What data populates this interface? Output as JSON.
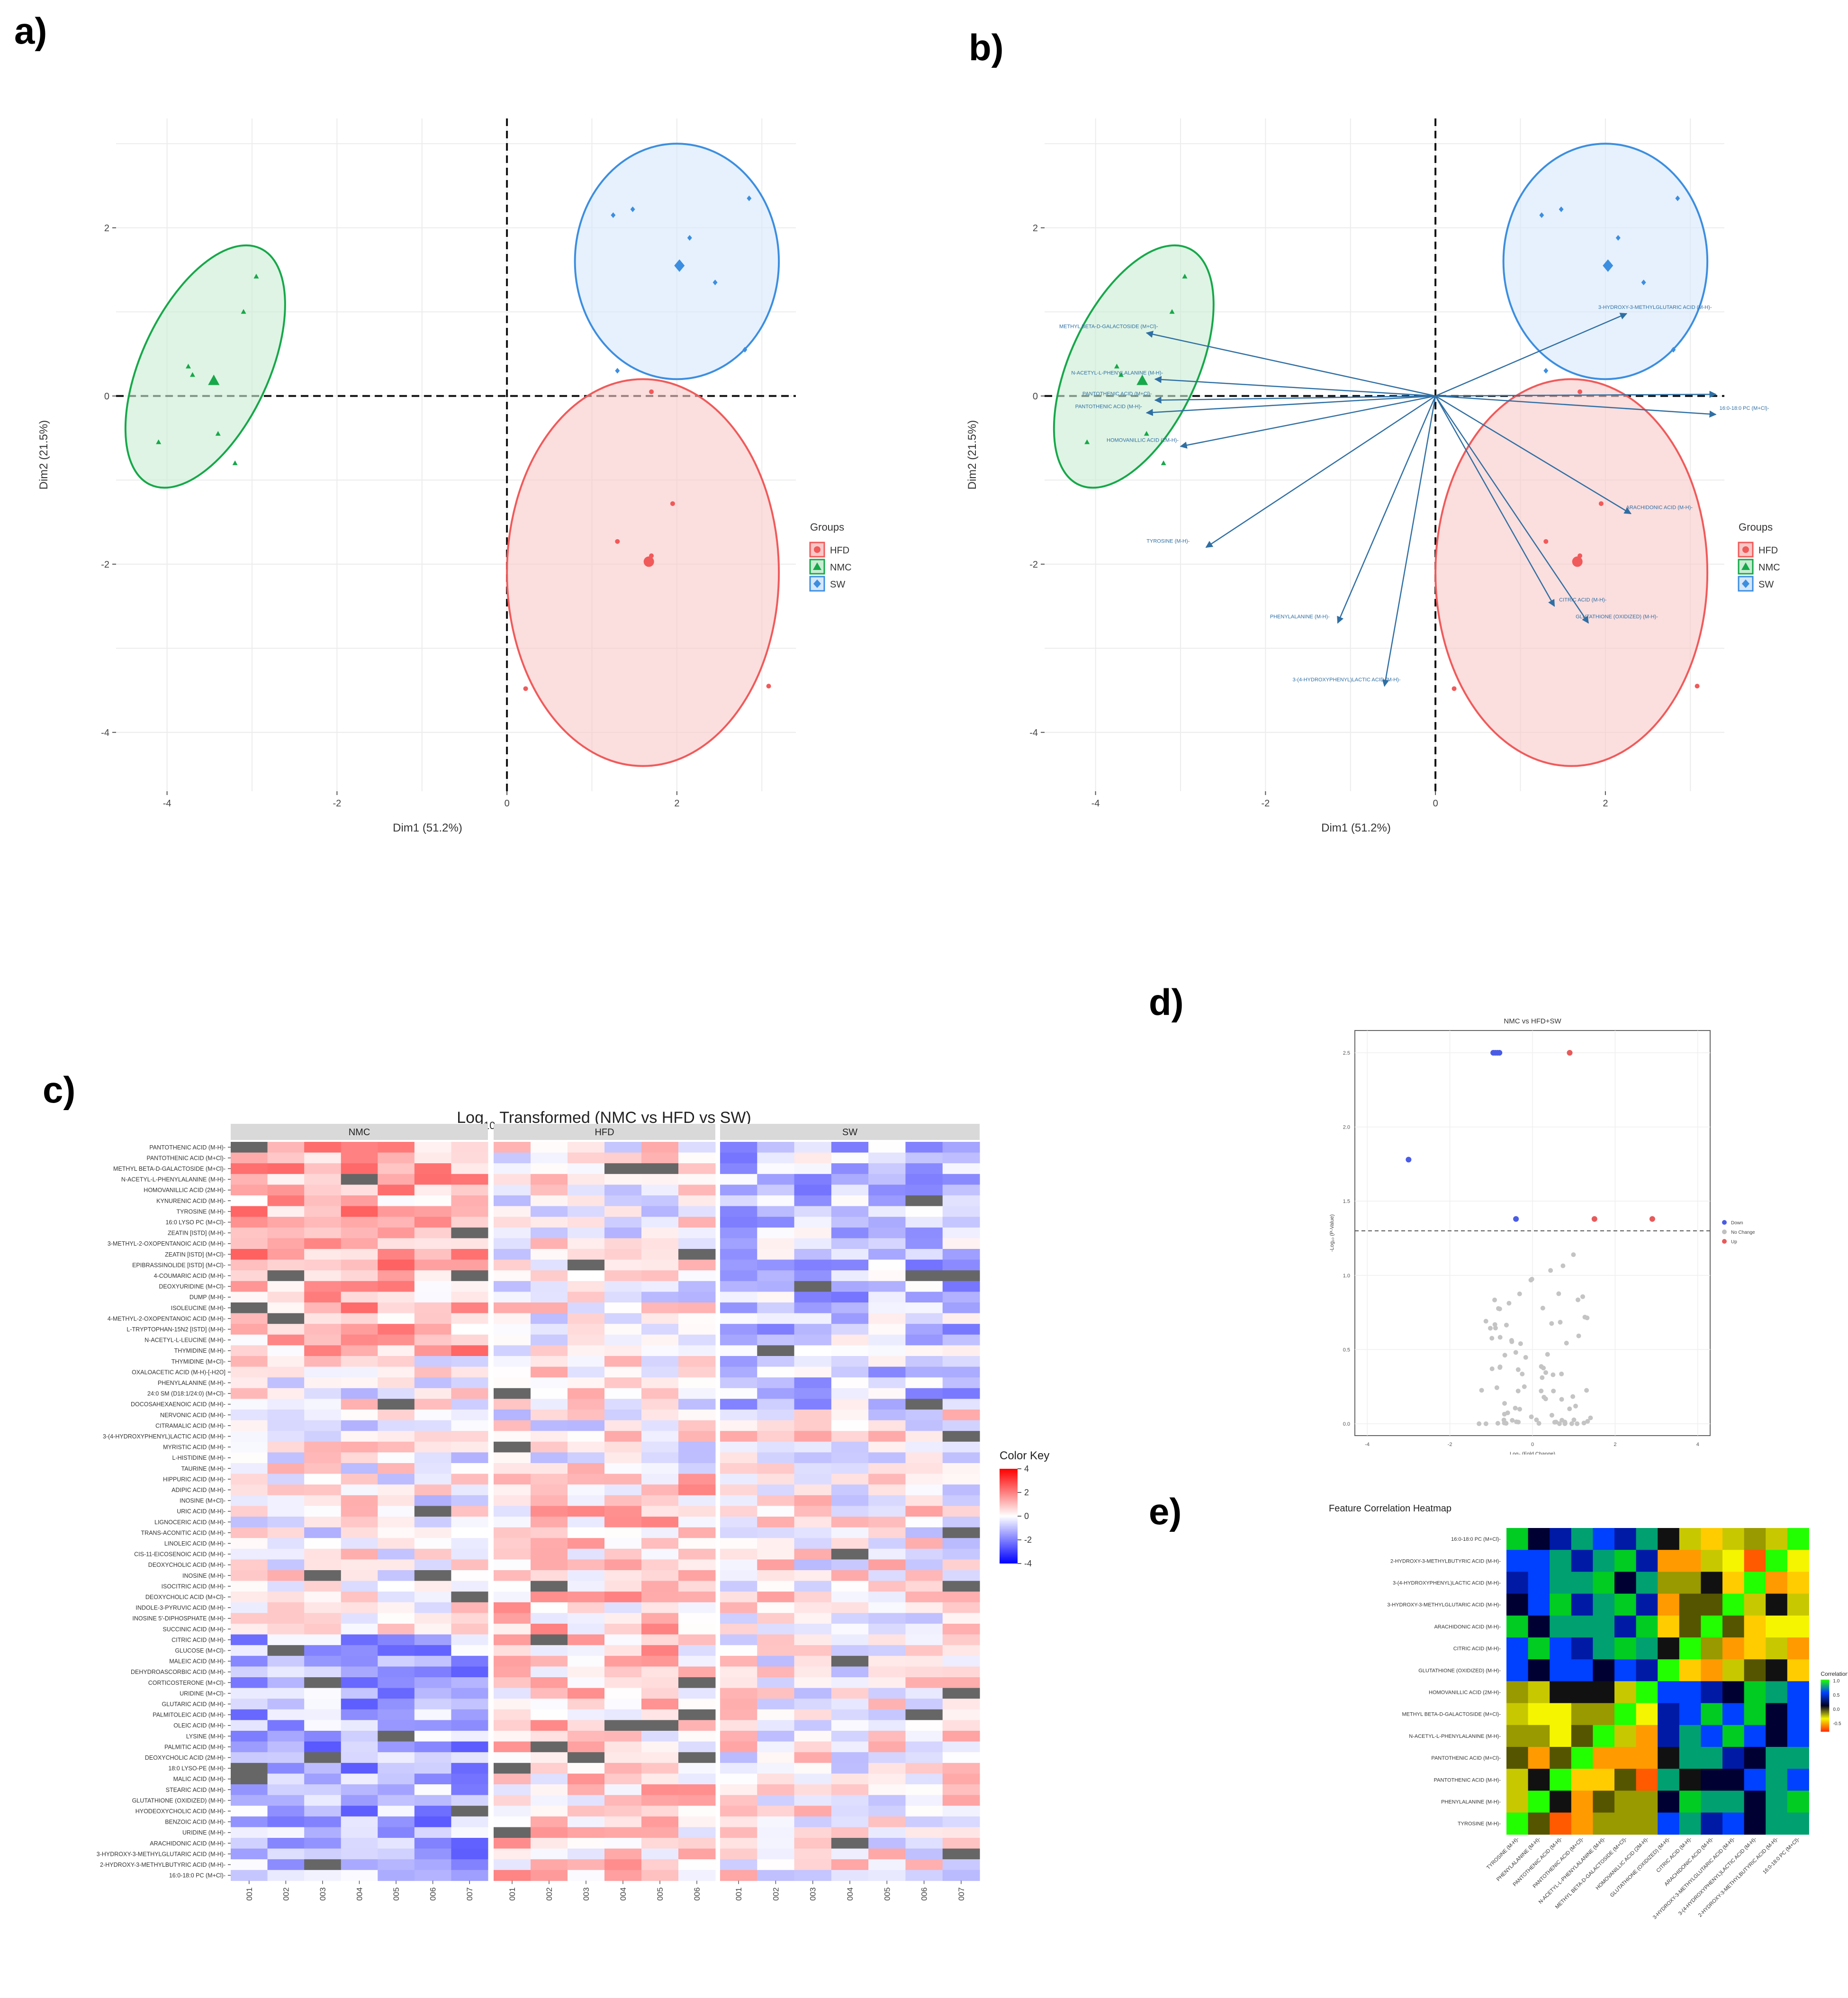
{
  "panel_labels": {
    "a": "a)",
    "b": "b)",
    "c": "c)",
    "d": "d)",
    "e": "e)"
  },
  "pca_common": {
    "xlabel": "Dim1 (51.2%)",
    "ylabel": "Dim2 (21.5%)",
    "xlim": [
      -4.6,
      3.4
    ],
    "ylim": [
      -4.7,
      3.3
    ],
    "xticks": [
      -4,
      -2,
      0,
      2
    ],
    "yticks": [
      -4,
      -2,
      0,
      2
    ],
    "legend_title": "Groups",
    "groups": [
      {
        "name": "HFD",
        "color": "#f05a5a",
        "fill": "#f8c8c8",
        "marker": "circle",
        "ellipse": {
          "cx": 1.6,
          "cy": -2.1,
          "rx": 1.6,
          "ry": 2.3
        },
        "points": [
          [
            1.7,
            0.05
          ],
          [
            1.95,
            -1.28
          ],
          [
            1.3,
            -1.73
          ],
          [
            1.65,
            -1.95
          ],
          [
            1.7,
            -1.9
          ],
          [
            0.22,
            -3.48
          ],
          [
            3.08,
            -3.45
          ]
        ],
        "centroid": [
          1.67,
          -1.97
        ]
      },
      {
        "name": "NMC",
        "color": "#16a84a",
        "fill": "#c9ecd2",
        "marker": "triangle",
        "ellipse": {
          "cx": -3.55,
          "cy": 0.35,
          "rx": 0.75,
          "ry": 1.55,
          "rot": 25
        },
        "points": [
          [
            -2.95,
            1.42
          ],
          [
            -3.1,
            1.0
          ],
          [
            -3.75,
            0.35
          ],
          [
            -3.7,
            0.25
          ],
          [
            -3.4,
            -0.45
          ],
          [
            -4.1,
            -0.55
          ],
          [
            -3.2,
            -0.8
          ]
        ],
        "centroid": [
          -3.45,
          0.18
        ]
      },
      {
        "name": "SW",
        "color": "#3c8ee0",
        "fill": "#d6e7fb",
        "marker": "diamond",
        "ellipse": {
          "cx": 2.0,
          "cy": 1.6,
          "rx": 1.2,
          "ry": 1.4
        },
        "points": [
          [
            1.25,
            2.15
          ],
          [
            1.48,
            2.22
          ],
          [
            2.85,
            2.35
          ],
          [
            2.15,
            1.88
          ],
          [
            2.45,
            1.35
          ],
          [
            2.8,
            0.55
          ],
          [
            1.3,
            0.3
          ]
        ],
        "centroid": [
          2.03,
          1.55
        ]
      }
    ]
  },
  "chart_data": [
    {
      "type": "scatter",
      "panel": "a",
      "title": "",
      "xlabel": "Dim1 (51.2%)",
      "ylabel": "Dim2 (21.5%)",
      "series_ref": "pca_common.groups"
    },
    {
      "type": "scatter",
      "panel": "b",
      "title": "",
      "xlabel": "Dim1 (51.2%)",
      "ylabel": "Dim2 (21.5%)",
      "series_ref": "pca_common.groups",
      "loadings": [
        {
          "label": "METHYL BETA-D-GALACTOSIDE (M+Cl)-",
          "x": -3.4,
          "y": 0.75
        },
        {
          "label": "N-ACETYL-L-PHENYLALANINE (M-H)-",
          "x": -3.3,
          "y": 0.2
        },
        {
          "label": "PANTOTHENIC ACID (M+Cl)-",
          "x": -3.3,
          "y": -0.05
        },
        {
          "label": "PANTOTHENIC ACID (M-H)-",
          "x": -3.4,
          "y": -0.2
        },
        {
          "label": "HOMOVANILLIC ACID (2M-H)-",
          "x": -3.0,
          "y": -0.6
        },
        {
          "label": "TYROSINE (M-H)-",
          "x": -2.7,
          "y": -1.8
        },
        {
          "label": "PHENYLALANINE (M-H)-",
          "x": -1.15,
          "y": -2.7
        },
        {
          "label": "3-(4-HYDROXYPHENYL)LACTIC ACID (M-H)-",
          "x": -0.6,
          "y": -3.45
        },
        {
          "label": "CITRIC ACID (M-H)-",
          "x": 1.4,
          "y": -2.5
        },
        {
          "label": "GLUTATHIONE (OXIDIZED) (M-H)-",
          "x": 1.8,
          "y": -2.7
        },
        {
          "label": "ARACHIDONIC ACID (M-H)-",
          "x": 2.3,
          "y": -1.4
        },
        {
          "label": "3-HYDROXY-3-METHYLGLUTARIC ACID (M-H)-",
          "x": 2.25,
          "y": 0.98
        },
        {
          "label": "16:0-18:0 PC (M+Cl)-",
          "x": 3.3,
          "y": -0.22
        },
        {
          "label": "",
          "x": 3.3,
          "y": 0.02
        }
      ]
    },
    {
      "type": "heatmap",
      "panel": "c",
      "title": "Log₁₀ Transformed (NMC vs HFD vs SW)",
      "title_main": "Log",
      "title_sub": "10",
      "title_rest": " Transformed (NMC vs HFD vs SW)",
      "facets": [
        {
          "name": "NMC",
          "columns": [
            "001",
            "002",
            "003",
            "004",
            "005",
            "006",
            "007"
          ]
        },
        {
          "name": "HFD",
          "columns": [
            "001",
            "002",
            "003",
            "004",
            "005",
            "006"
          ]
        },
        {
          "name": "SW",
          "columns": [
            "001",
            "002",
            "003",
            "004",
            "005",
            "006",
            "007"
          ]
        }
      ],
      "rows": [
        "PANTOTHENIC ACID (M-H)-",
        "PANTOTHENIC ACID (M+Cl)-",
        "METHYL BETA-D-GALACTOSIDE (M+Cl)-",
        "N-ACETYL-L-PHENYLALANINE (M-H)-",
        "HOMOVANILLIC ACID (2M-H)-",
        "KYNURENIC ACID (M-H)-",
        "TYROSINE (M-H)-",
        "16:0 LYSO PC (M+Cl)-",
        "ZEATIN [ISTD] (M-H)-",
        "3-METHYL-2-OXOPENTANOIC ACID (M-H)-",
        "ZEATIN [ISTD] (M+Cl)-",
        "EPIBRASSINOLIDE [ISTD] (M+Cl)-",
        "4-COUMARIC ACID (M-H)-",
        "DEOXYURIDINE (M+Cl)-",
        "DUMP (M-H)-",
        "ISOLEUCINE (M-H)-",
        "4-METHYL-2-OXOPENTANOIC ACID (M-H)-",
        "L-TRYPTOPHAN-15N2 [ISTD] (M-H)-",
        "N-ACETYL-L-LEUCINE (M-H)-",
        "THYMIDINE (M-H)-",
        "THYMIDINE (M+Cl)-",
        "OXALOACETIC ACID (M-H)-[-H2O]",
        "PHENYLALANINE (M-H)-",
        "24:0 SM (D18:1/24:0) (M+Cl)-",
        "DOCOSAHEXAENOIC ACID (M-H)-",
        "NERVONIC ACID (M-H)-",
        "CITRAMALIC ACID (M-H)-",
        "3-(4-HYDROXYPHENYL)LACTIC ACID (M-H)-",
        "MYRISTIC ACID (M-H)-",
        "L-HISTIDINE (M-H)-",
        "TAURINE (M-H)-",
        "HIPPURIC ACID (M-H)-",
        "ADIPIC ACID (M-H)-",
        "INOSINE (M+Cl)-",
        "URIC ACID (M-H)-",
        "LIGNOCERIC ACID (M-H)-",
        "TRANS-ACONITIC ACID (M-H)-",
        "LINOLEIC ACID (M-H)-",
        "CIS-11-EICOSENOIC ACID (M-H)-",
        "DEOXYCHOLIC ACID (M-H)-",
        "INOSINE (M-H)-",
        "ISOCITRIC ACID (M-H)-",
        "DEOXYCHOLIC ACID (M+Cl)-",
        "INDOLE-3-PYRUVIC ACID (M-H)-",
        "INOSINE 5'-DIPHOSPHATE (M-H)-",
        "SUCCINIC ACID (M-H)-",
        "CITRIC ACID (M-H)-",
        "GLUCOSE (M+Cl)-",
        "MALEIC ACID (M-H)-",
        "DEHYDROASCORBIC ACID (M-H)-",
        "CORTICOSTERONE (M+Cl)-",
        "URIDINE (M+Cl)-",
        "GLUTARIC ACID (M-H)-",
        "PALMITOLEIC ACID (M-H)-",
        "OLEIC ACID (M-H)-",
        "LYSINE (M-H)-",
        "PALMITIC ACID (M-H)-",
        "DEOXYCHOLIC ACID (2M-H)-",
        "18:0 LYSO-PE (M-H)-",
        "MALIC ACID (M-H)-",
        "STEARIC ACID (M-H)-",
        "GLUTATHIONE (OXIDIZED) (M-H)-",
        "HYODEOXYCHOLIC ACID (M-H)-",
        "BENZOIC ACID (M-H)-",
        "URIDINE (M-H)-",
        "ARACHIDONIC ACID (M-H)-",
        "3-HYDROXY-3-METHYLGLUTARIC ACID (M-H)-",
        "2-HYDROXY-3-METHYLBUTYRIC ACID (M-H)-",
        "16:0-18:0 PC (M+Cl)-"
      ],
      "value_range": [
        -4,
        4
      ],
      "missing_color": "#666666",
      "color_key": {
        "title": "Color Key",
        "ticks": [
          "4",
          "2",
          "0",
          "-2",
          "-4"
        ]
      }
    },
    {
      "type": "scatter",
      "panel": "d",
      "title": "NMC vs HFD+SW",
      "xlabel": "Log₂ (Fold Change)",
      "ylabel": "-Log₁₀ (P-Value)",
      "xlim": [
        -4.3,
        4.3
      ],
      "ylim": [
        -0.08,
        2.65
      ],
      "xticks": [
        -4,
        -2,
        0,
        2,
        4
      ],
      "yticks": [
        0.0,
        0.5,
        1.0,
        1.5,
        2.0,
        2.5
      ],
      "threshold_y": 1.3,
      "legend": [
        {
          "name": "Down",
          "color": "#4a5ce6"
        },
        {
          "name": "No Change",
          "color": "#c0c0c0"
        },
        {
          "name": "Up",
          "color": "#e85a5a"
        }
      ],
      "points_down": [
        [
          -3.0,
          1.78
        ],
        [
          -0.95,
          2.5
        ],
        [
          -0.85,
          2.5
        ],
        [
          -0.9,
          2.5
        ],
        [
          -0.8,
          2.5
        ],
        [
          -0.4,
          1.38
        ]
      ],
      "points_up": [
        [
          0.9,
          2.5
        ],
        [
          1.5,
          1.38
        ],
        [
          2.9,
          1.38
        ]
      ]
    },
    {
      "type": "heatmap",
      "panel": "e",
      "title": "Feature Correlation Heatmap",
      "features": [
        "16:0-18:0 PC (M+Cl)-",
        "2-HYDROXY-3-METHYLBUTYRIC ACID (M-H)-",
        "3-(4-HYDROXYPHENYL)LACTIC ACID (M-H)-",
        "3-HYDROXY-3-METHYLGLUTARIC ACID (M-H)-",
        "ARACHIDONIC ACID (M-H)-",
        "CITRIC ACID (M-H)-",
        "GLUTATHIONE (OXIDIZED) (M-H)-",
        "HOMOVANILLIC ACID (2M-H)-",
        "METHYL BETA-D-GALACTOSIDE (M+Cl)-",
        "N-ACETYL-L-PHENYLALANINE (M-H)-",
        "PANTOTHENIC ACID (M+Cl)-",
        "PANTOTHENIC ACID (M-H)-",
        "PHENYLALANINE (M-H)-",
        "TYROSINE (M-H)-"
      ],
      "x_features": [
        "TYROSINE (M-H)-",
        "PHENYLALANINE (M-H)-",
        "PANTOTHENIC ACID (M-H)-",
        "PANTOTHENIC ACID (M+Cl)-",
        "N-ACETYL-L-PHENYLALANINE (M-H)-",
        "METHYL BETA-D-GALACTOSIDE (M+Cl)-",
        "HOMOVANILLIC ACID (2M-H)-",
        "GLUTATHIONE (OXIDIZED) (M-H)-",
        "CITRIC ACID (M-H)-",
        "ARACHIDONIC ACID (M-H)-",
        "3-HYDROXY-3-METHYLGLUTARIC ACID (M-H)-",
        "3-(4-HYDROXYPHENYL)LACTIC ACID (M-H)-",
        "2-HYDROXY-3-METHYLBUTYRIC ACID (M-H)-",
        "16:0-18:0 PC (M+Cl)-"
      ],
      "legend_title": "Correlation",
      "legend_ticks": [
        "1.0",
        "0.5",
        "0.0",
        "-0.5"
      ]
    }
  ]
}
